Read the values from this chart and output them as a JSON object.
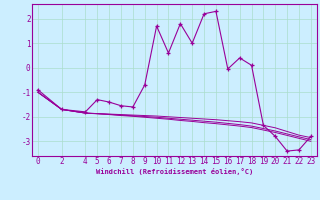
{
  "xlabel": "Windchill (Refroidissement éolien,°C)",
  "background_color": "#cceeff",
  "grid_color": "#aaddcc",
  "line_color": "#990099",
  "x_data": [
    0,
    2,
    4,
    5,
    6,
    7,
    8,
    9,
    10,
    11,
    12,
    13,
    14,
    15,
    16,
    17,
    18,
    19,
    20,
    21,
    22,
    23
  ],
  "y_main": [
    -0.9,
    -1.7,
    -1.8,
    -1.3,
    -1.4,
    -1.55,
    -1.6,
    -0.7,
    1.7,
    0.6,
    1.8,
    1.0,
    2.2,
    2.3,
    -0.05,
    0.4,
    0.1,
    -2.35,
    -2.8,
    -3.4,
    -3.35,
    -2.8
  ],
  "y_smooth1": [
    -1.0,
    -1.7,
    -1.85,
    -1.87,
    -1.89,
    -1.91,
    -1.93,
    -1.95,
    -1.97,
    -2.0,
    -2.03,
    -2.06,
    -2.09,
    -2.12,
    -2.16,
    -2.2,
    -2.25,
    -2.35,
    -2.45,
    -2.6,
    -2.75,
    -2.85
  ],
  "y_smooth2": [
    -1.0,
    -1.7,
    -1.85,
    -1.87,
    -1.9,
    -1.93,
    -1.96,
    -1.99,
    -2.02,
    -2.06,
    -2.1,
    -2.14,
    -2.18,
    -2.22,
    -2.27,
    -2.32,
    -2.38,
    -2.48,
    -2.58,
    -2.7,
    -2.82,
    -2.93
  ],
  "y_smooth3": [
    -1.0,
    -1.7,
    -1.85,
    -1.88,
    -1.91,
    -1.95,
    -1.98,
    -2.02,
    -2.06,
    -2.1,
    -2.15,
    -2.19,
    -2.24,
    -2.28,
    -2.33,
    -2.38,
    -2.44,
    -2.54,
    -2.64,
    -2.76,
    -2.88,
    -3.0
  ],
  "ylim": [
    -3.6,
    2.6
  ],
  "xlim": [
    -0.5,
    23.5
  ],
  "xticks": [
    0,
    2,
    4,
    5,
    6,
    7,
    8,
    9,
    10,
    11,
    12,
    13,
    14,
    15,
    16,
    17,
    18,
    19,
    20,
    21,
    22,
    23
  ],
  "yticks": [
    -3,
    -2,
    -1,
    0,
    1,
    2
  ],
  "xlabel_fontsize": 5.0,
  "tick_fontsize": 5.5
}
